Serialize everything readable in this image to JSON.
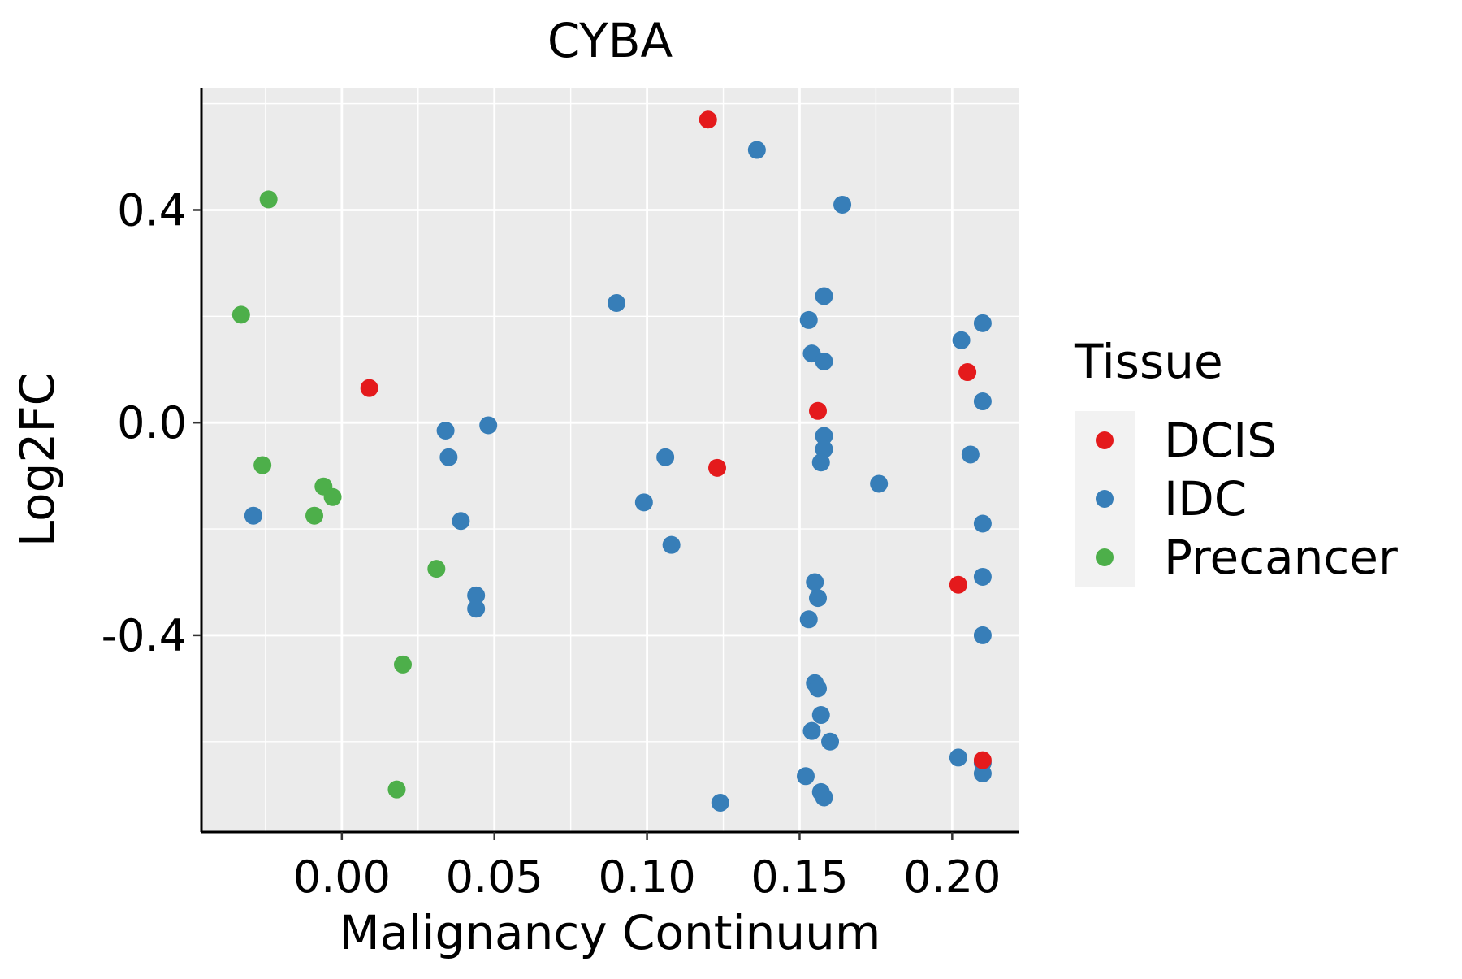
{
  "chart_data": {
    "type": "scatter",
    "title": "CYBA",
    "xlabel": "Malignancy Continuum",
    "ylabel": "Log2FC",
    "xlim": [
      -0.046,
      0.222
    ],
    "ylim": [
      -0.77,
      0.63
    ],
    "x_ticks": [
      0.0,
      0.05,
      0.1,
      0.15,
      0.2
    ],
    "x_tick_labels": [
      "0.00",
      "0.05",
      "0.10",
      "0.15",
      "0.20"
    ],
    "y_ticks": [
      -0.4,
      0.0,
      0.4
    ],
    "y_tick_labels": [
      "-0.4",
      "0.0",
      "0.4"
    ],
    "grid": true,
    "legend": {
      "title": "Tissue",
      "position": "right"
    },
    "series": [
      {
        "name": "DCIS",
        "color": "#E41A1C",
        "points": [
          {
            "x": 0.12,
            "y": 0.57
          },
          {
            "x": 0.009,
            "y": 0.065
          },
          {
            "x": 0.123,
            "y": -0.085
          },
          {
            "x": 0.156,
            "y": 0.022
          },
          {
            "x": 0.205,
            "y": 0.095
          },
          {
            "x": 0.202,
            "y": -0.305
          },
          {
            "x": 0.21,
            "y": -0.635
          }
        ]
      },
      {
        "name": "IDC",
        "color": "#377EB8",
        "points": [
          {
            "x": 0.136,
            "y": 0.513
          },
          {
            "x": 0.164,
            "y": 0.41
          },
          {
            "x": 0.09,
            "y": 0.225
          },
          {
            "x": 0.158,
            "y": 0.238
          },
          {
            "x": 0.153,
            "y": 0.193
          },
          {
            "x": 0.154,
            "y": 0.13
          },
          {
            "x": 0.158,
            "y": 0.115
          },
          {
            "x": 0.203,
            "y": 0.155
          },
          {
            "x": 0.21,
            "y": 0.187
          },
          {
            "x": 0.21,
            "y": 0.04
          },
          {
            "x": 0.034,
            "y": -0.015
          },
          {
            "x": 0.048,
            "y": -0.005
          },
          {
            "x": 0.035,
            "y": -0.065
          },
          {
            "x": 0.039,
            "y": -0.185
          },
          {
            "x": 0.044,
            "y": -0.325
          },
          {
            "x": 0.044,
            "y": -0.35
          },
          {
            "x": -0.029,
            "y": -0.175
          },
          {
            "x": 0.106,
            "y": -0.065
          },
          {
            "x": 0.099,
            "y": -0.15
          },
          {
            "x": 0.108,
            "y": -0.23
          },
          {
            "x": 0.158,
            "y": -0.025
          },
          {
            "x": 0.158,
            "y": -0.05
          },
          {
            "x": 0.157,
            "y": -0.075
          },
          {
            "x": 0.176,
            "y": -0.115
          },
          {
            "x": 0.206,
            "y": -0.06
          },
          {
            "x": 0.21,
            "y": -0.19
          },
          {
            "x": 0.21,
            "y": -0.29
          },
          {
            "x": 0.21,
            "y": -0.4
          },
          {
            "x": 0.155,
            "y": -0.3
          },
          {
            "x": 0.156,
            "y": -0.33
          },
          {
            "x": 0.153,
            "y": -0.37
          },
          {
            "x": 0.155,
            "y": -0.49
          },
          {
            "x": 0.156,
            "y": -0.5
          },
          {
            "x": 0.157,
            "y": -0.55
          },
          {
            "x": 0.154,
            "y": -0.58
          },
          {
            "x": 0.16,
            "y": -0.6
          },
          {
            "x": 0.202,
            "y": -0.63
          },
          {
            "x": 0.21,
            "y": -0.66
          },
          {
            "x": 0.21,
            "y": -0.64
          },
          {
            "x": 0.152,
            "y": -0.665
          },
          {
            "x": 0.157,
            "y": -0.695
          },
          {
            "x": 0.158,
            "y": -0.705
          },
          {
            "x": 0.124,
            "y": -0.715
          }
        ]
      },
      {
        "name": "Precancer",
        "color": "#4DAF4A",
        "points": [
          {
            "x": -0.024,
            "y": 0.42
          },
          {
            "x": -0.033,
            "y": 0.203
          },
          {
            "x": -0.026,
            "y": -0.08
          },
          {
            "x": -0.006,
            "y": -0.12
          },
          {
            "x": -0.003,
            "y": -0.14
          },
          {
            "x": -0.009,
            "y": -0.175
          },
          {
            "x": 0.031,
            "y": -0.275
          },
          {
            "x": 0.02,
            "y": -0.455
          },
          {
            "x": 0.018,
            "y": -0.69
          }
        ]
      }
    ]
  }
}
